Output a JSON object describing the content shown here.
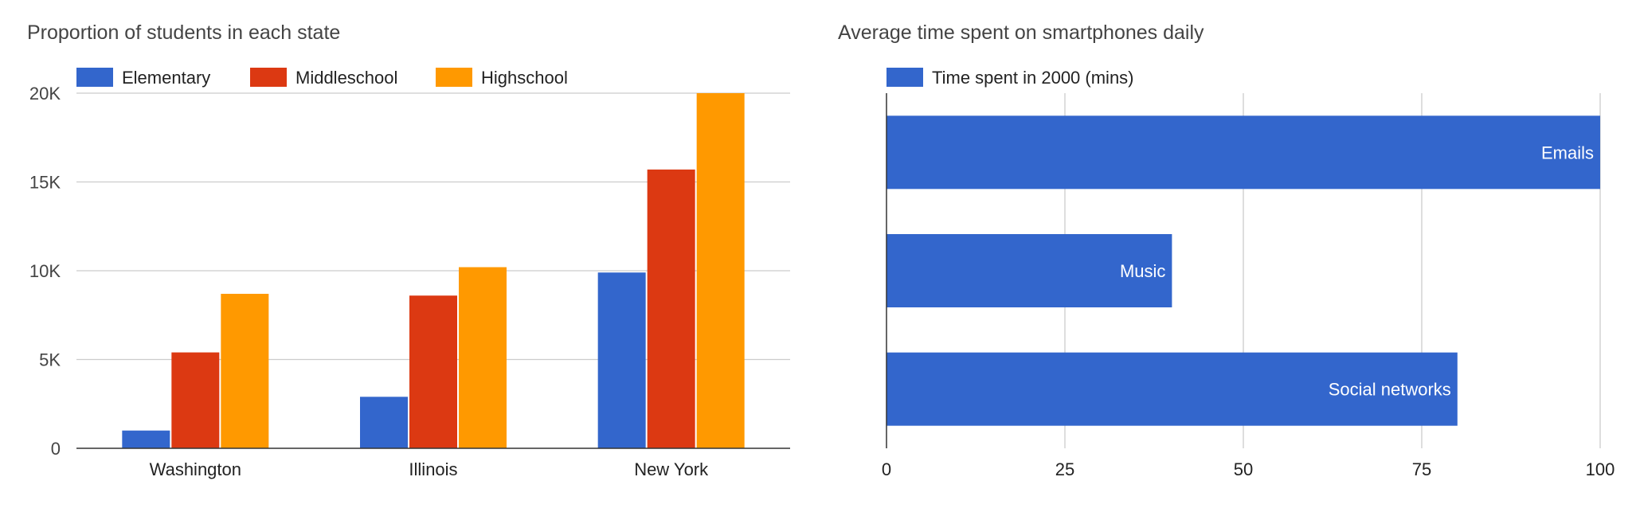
{
  "chart_data": [
    {
      "type": "bar",
      "title": "Proportion of students in each state",
      "categories": [
        "Washington",
        "Illinois",
        "New York"
      ],
      "series": [
        {
          "name": "Elementary",
          "color": "#3366cc",
          "values": [
            1000,
            2900,
            9900
          ]
        },
        {
          "name": "Middleschool",
          "color": "#dc3912",
          "values": [
            5400,
            8600,
            15700
          ]
        },
        {
          "name": "Highschool",
          "color": "#ff9900",
          "values": [
            8700,
            10200,
            20000
          ]
        }
      ],
      "yticks": [
        "0",
        "5K",
        "10K",
        "15K",
        "20K"
      ],
      "ylim": [
        0,
        20000
      ],
      "grid": true,
      "legend_position": "top"
    },
    {
      "type": "bar",
      "orientation": "horizontal",
      "title": "Average time spent on smartphones daily",
      "categories": [
        "Emails",
        "Music",
        "Social networks"
      ],
      "series": [
        {
          "name": "Time spent in 2000 (mins)",
          "color": "#3366cc",
          "values": [
            100,
            40,
            80
          ]
        }
      ],
      "xticks": [
        "0",
        "25",
        "50",
        "75",
        "100"
      ],
      "xlim": [
        0,
        100
      ],
      "grid": true,
      "legend_position": "top"
    }
  ]
}
